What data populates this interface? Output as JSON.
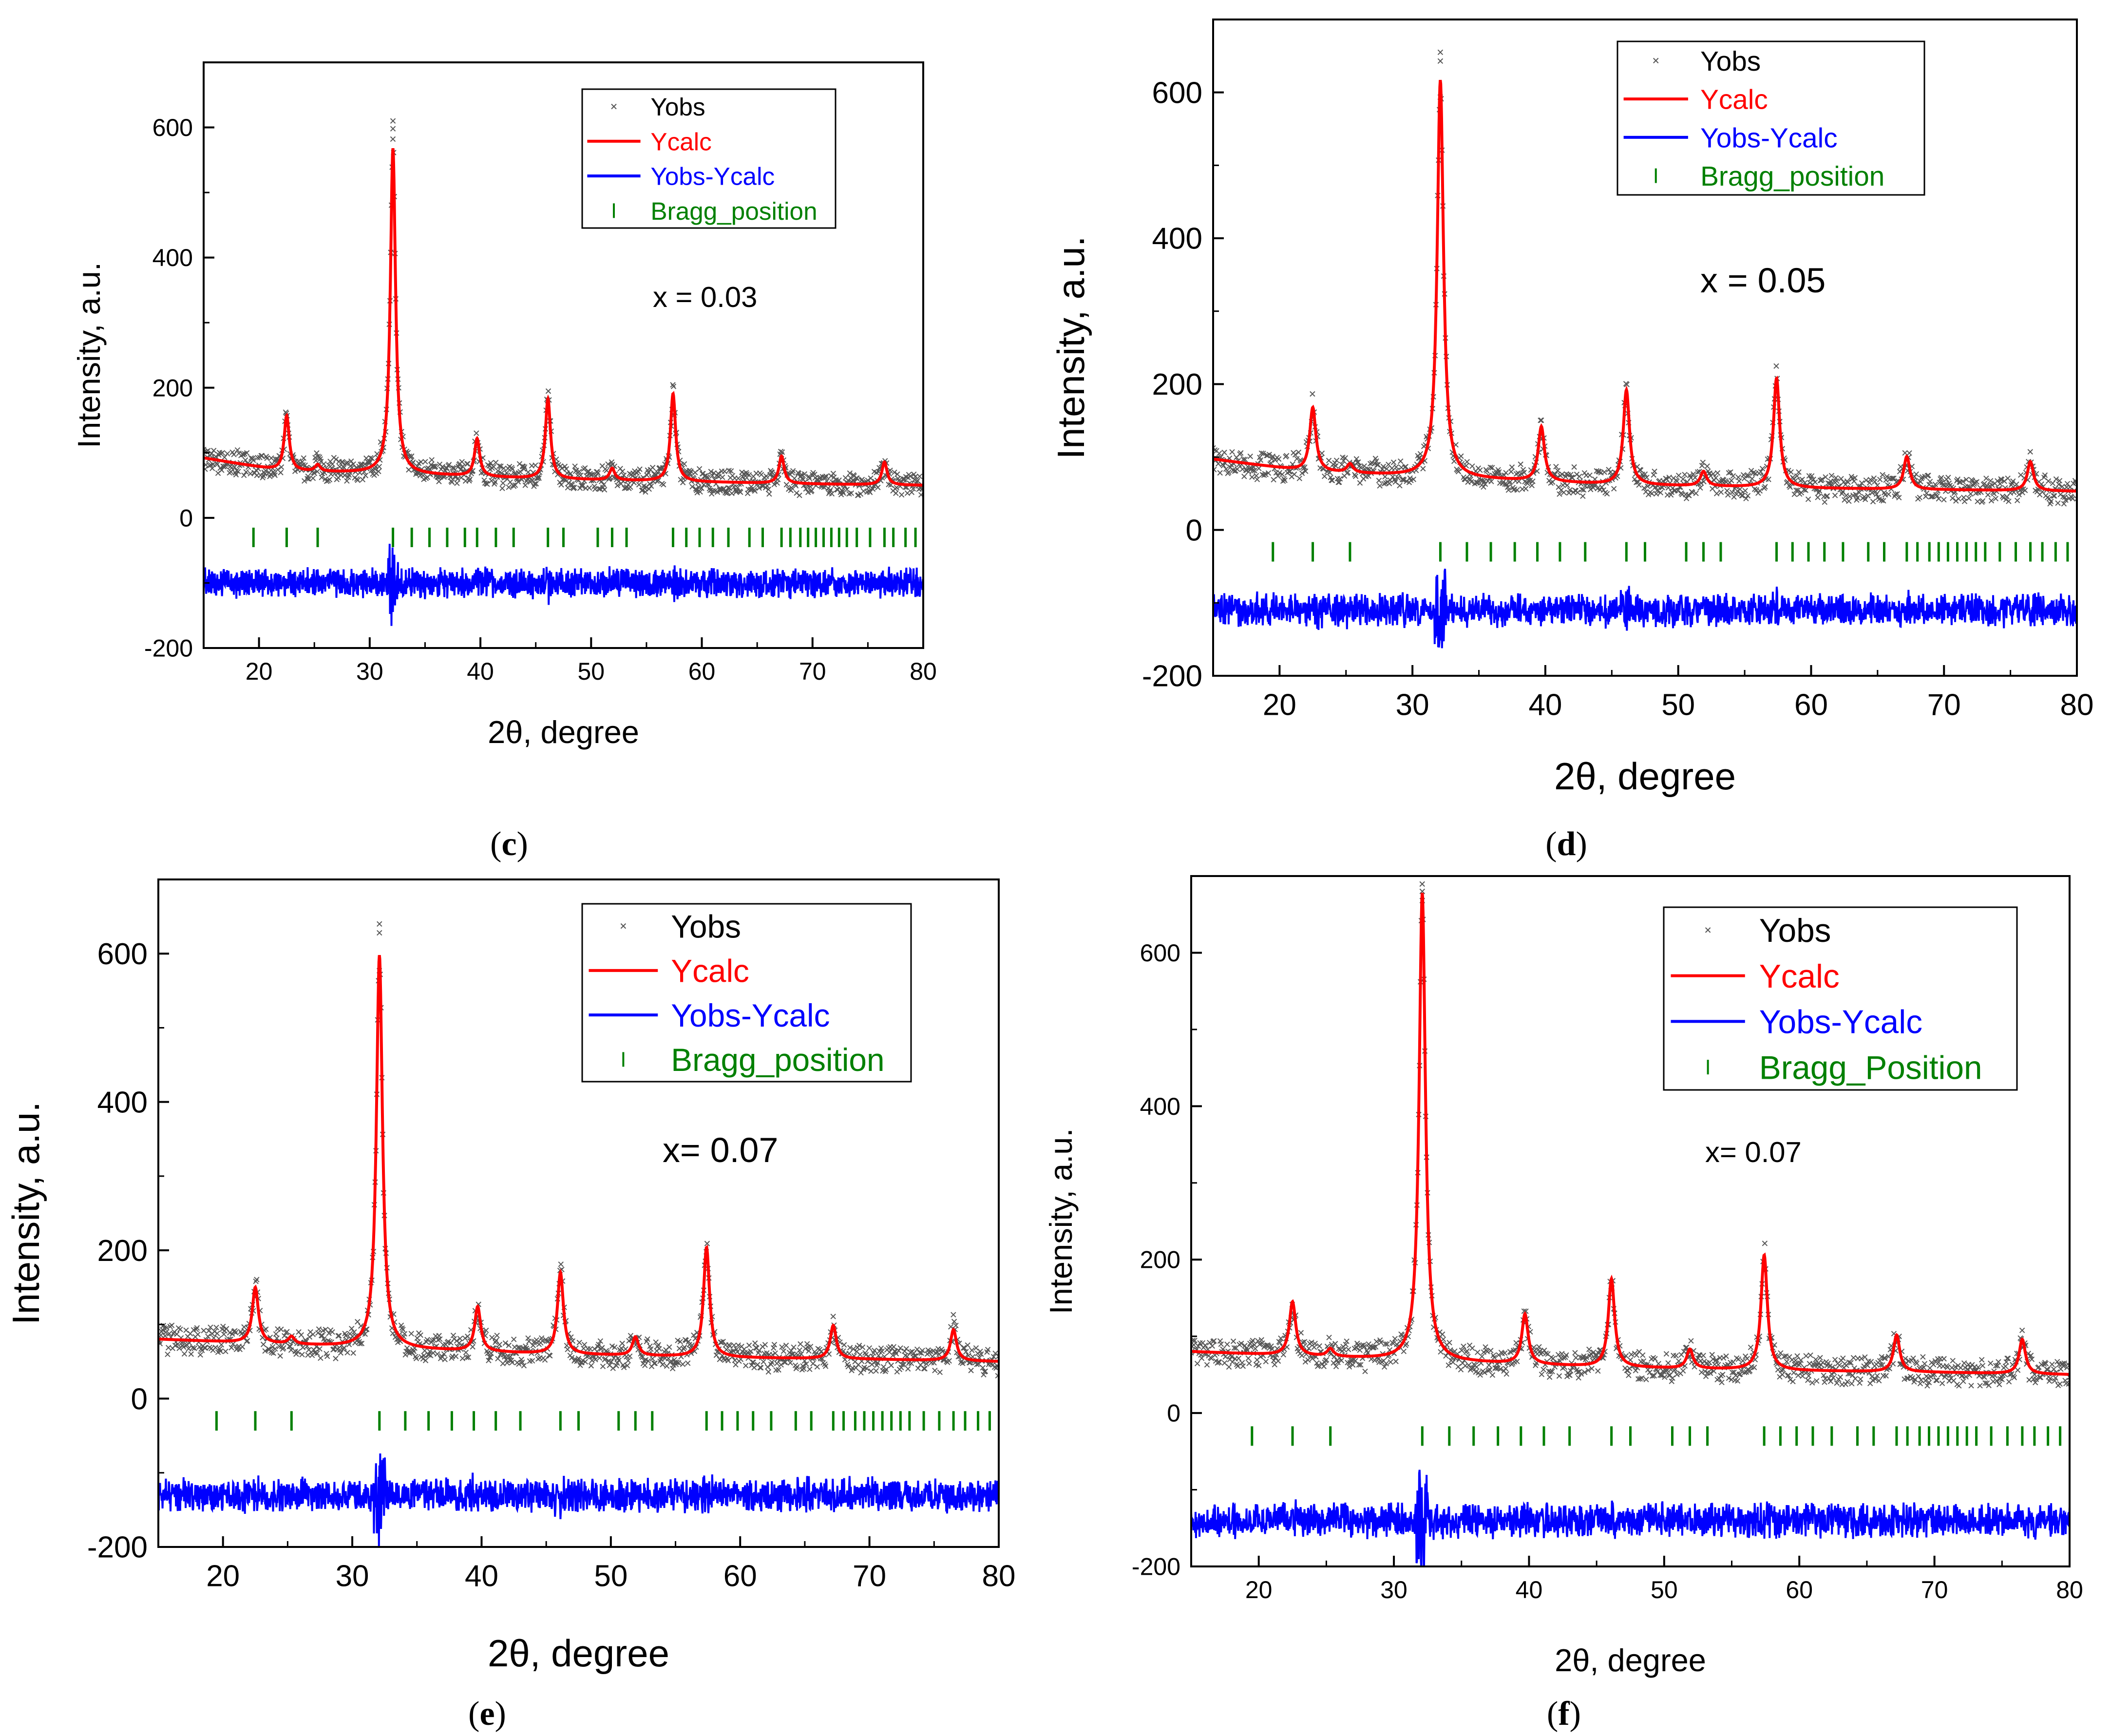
{
  "colors": {
    "yobs": "#555555",
    "ycalc": "#ff0000",
    "diff": "#0000ff",
    "bragg": "#008000",
    "axis": "#000000"
  },
  "chart_data": [
    {
      "panel": "(c)",
      "panel_letter": "c",
      "type": "scatter",
      "xlabel": "2θ, degree",
      "ylabel": "Intensity, a.u.",
      "xlim": [
        15,
        80
      ],
      "ylim": [
        -200,
        700
      ],
      "xticks": [
        20,
        30,
        40,
        50,
        60,
        70,
        80
      ],
      "xtick_labels": [
        "20",
        "30",
        "40",
        "50",
        "60",
        "70",
        "80"
      ],
      "yticks": [
        -200,
        0,
        200,
        400,
        600
      ],
      "ytick_labels": [
        "-200",
        "0",
        "200",
        "400",
        "600"
      ],
      "annotation": "x = 0.03",
      "legend": [
        "Yobs",
        "Ycalc",
        "Yobs-Ycalc",
        "Bragg_position"
      ],
      "background": [
        [
          15,
          92
        ],
        [
          22,
          72
        ],
        [
          32,
          68
        ],
        [
          45,
          60
        ],
        [
          60,
          55
        ],
        [
          70,
          52
        ],
        [
          80,
          50
        ]
      ],
      "peaks": [
        [
          22.5,
          85
        ],
        [
          25.3,
          10
        ],
        [
          32.1,
          500
        ],
        [
          39.7,
          58
        ],
        [
          46.1,
          123
        ],
        [
          51.9,
          18
        ],
        [
          57.4,
          135
        ],
        [
          67.2,
          42
        ],
        [
          76.5,
          35
        ]
      ],
      "yobs_max_top": 610,
      "diff_offset": -100,
      "bragg_y": -30,
      "bragg_positions": [
        19.5,
        22.5,
        25.3,
        32.1,
        33.8,
        35.4,
        37.0,
        38.6,
        39.7,
        41.4,
        43.0,
        46.1,
        47.5,
        50.6,
        51.9,
        53.2,
        57.4,
        58.6,
        59.8,
        61.0,
        62.4,
        64.3,
        65.5,
        67.2,
        68.0,
        68.9,
        69.6,
        70.3,
        71.0,
        71.7,
        72.4,
        73.1,
        74.0,
        75.2,
        76.5,
        77.3,
        78.4,
        79.3
      ]
    },
    {
      "panel": "(d)",
      "panel_letter": "d",
      "type": "scatter",
      "xlabel": "2θ, degree",
      "ylabel": "Intensity, a.u.",
      "xlim": [
        15,
        80
      ],
      "ylim": [
        -200,
        700
      ],
      "xticks": [
        20,
        30,
        40,
        50,
        60,
        70,
        80
      ],
      "xtick_labels": [
        "20",
        "30",
        "40",
        "50",
        "60",
        "70",
        "80"
      ],
      "yticks": [
        -200,
        0,
        200,
        400,
        600
      ],
      "ytick_labels": [
        "-200",
        "0",
        "200",
        "400",
        "600"
      ],
      "annotation": "x = 0.05",
      "legend": [
        "Yobs",
        "Ycalc",
        "Yobs-Ycalc",
        "Bragg_position"
      ],
      "background": [
        [
          15,
          97
        ],
        [
          22,
          80
        ],
        [
          32,
          72
        ],
        [
          45,
          62
        ],
        [
          60,
          57
        ],
        [
          70,
          55
        ],
        [
          80,
          53
        ]
      ],
      "peaks": [
        [
          22.5,
          88
        ],
        [
          25.3,
          12
        ],
        [
          32.1,
          545
        ],
        [
          39.7,
          75
        ],
        [
          46.1,
          130
        ],
        [
          51.9,
          20
        ],
        [
          57.4,
          150
        ],
        [
          67.2,
          45
        ],
        [
          76.5,
          40
        ]
      ],
      "yobs_max_top": 655,
      "diff_offset": -110,
      "bragg_y": -30,
      "bragg_positions": [
        19.5,
        22.5,
        25.3,
        32.1,
        34.1,
        35.9,
        37.7,
        39.4,
        41.1,
        43.0,
        46.1,
        47.5,
        50.6,
        51.9,
        53.2,
        57.4,
        58.6,
        59.8,
        61.0,
        62.4,
        64.3,
        65.5,
        67.2,
        68.0,
        68.9,
        69.6,
        70.3,
        71.0,
        71.7,
        72.4,
        73.1,
        74.2,
        75.4,
        76.5,
        77.4,
        78.4,
        79.3
      ]
    },
    {
      "panel": "(e)",
      "panel_letter": "e",
      "type": "scatter",
      "xlabel": "2θ, degree",
      "ylabel": "Intensity, a.u.",
      "xlim": [
        15,
        80
      ],
      "ylim": [
        -200,
        700
      ],
      "xticks": [
        20,
        30,
        40,
        50,
        60,
        70,
        80
      ],
      "xtick_labels": [
        "20",
        "30",
        "40",
        "50",
        "60",
        "70",
        "80"
      ],
      "yticks": [
        -200,
        0,
        200,
        400,
        600
      ],
      "ytick_labels": [
        "-200",
        "0",
        "200",
        "400",
        "600"
      ],
      "annotation": "x= 0.07",
      "legend": [
        "Yobs",
        "Ycalc",
        "Yobs-Ycalc",
        "Bragg_position"
      ],
      "background": [
        [
          15,
          80
        ],
        [
          22,
          75
        ],
        [
          32,
          68
        ],
        [
          45,
          60
        ],
        [
          60,
          55
        ],
        [
          70,
          53
        ],
        [
          80,
          50
        ]
      ],
      "peaks": [
        [
          22.5,
          75
        ],
        [
          25.3,
          10
        ],
        [
          32.1,
          530
        ],
        [
          39.7,
          60
        ],
        [
          46.1,
          110
        ],
        [
          51.9,
          25
        ],
        [
          57.4,
          148
        ],
        [
          67.2,
          45
        ],
        [
          76.5,
          42
        ]
      ],
      "yobs_max_top": 640,
      "diff_offset": -130,
      "bragg_y": -30,
      "bragg_positions": [
        19.5,
        22.5,
        25.3,
        32.1,
        34.1,
        35.9,
        37.7,
        39.4,
        41.1,
        43.0,
        46.1,
        47.5,
        50.6,
        51.9,
        53.2,
        57.4,
        58.6,
        59.8,
        61.0,
        62.4,
        64.3,
        65.5,
        67.2,
        68.0,
        68.9,
        69.6,
        70.3,
        71.0,
        71.7,
        72.4,
        73.1,
        74.2,
        75.4,
        76.5,
        77.4,
        78.4,
        79.3
      ]
    },
    {
      "panel": "(f)",
      "panel_letter": "f",
      "type": "scatter",
      "xlabel": "2θ, degree",
      "ylabel": "Intensity, a.u.",
      "xlim": [
        15,
        80
      ],
      "ylim": [
        -200,
        700
      ],
      "xticks": [
        20,
        30,
        40,
        50,
        60,
        70,
        80
      ],
      "xtick_labels": [
        "20",
        "30",
        "40",
        "50",
        "60",
        "70",
        "80"
      ],
      "yticks": [
        -200,
        0,
        200,
        400,
        600
      ],
      "ytick_labels": [
        "-200",
        "0",
        "200",
        "400",
        "600"
      ],
      "annotation": "x= 0.07",
      "legend": [
        "Yobs",
        "Ycalc",
        "Yobs-Ycalc",
        "Bragg_Position"
      ],
      "background": [
        [
          15,
          80
        ],
        [
          22,
          75
        ],
        [
          32,
          68
        ],
        [
          45,
          60
        ],
        [
          60,
          55
        ],
        [
          70,
          53
        ],
        [
          80,
          50
        ]
      ],
      "peaks": [
        [
          22.5,
          70
        ],
        [
          25.3,
          10
        ],
        [
          32.1,
          610
        ],
        [
          39.7,
          65
        ],
        [
          46.1,
          115
        ],
        [
          51.9,
          25
        ],
        [
          57.4,
          150
        ],
        [
          67.2,
          48
        ],
        [
          76.5,
          45
        ]
      ],
      "yobs_max_top": 680,
      "diff_offset": -140,
      "bragg_y": -30,
      "bragg_positions": [
        19.5,
        22.5,
        25.3,
        32.1,
        34.1,
        35.9,
        37.7,
        39.4,
        41.1,
        43.0,
        46.1,
        47.5,
        50.6,
        51.9,
        53.2,
        57.4,
        58.6,
        59.8,
        61.0,
        62.4,
        64.3,
        65.5,
        67.2,
        68.0,
        68.9,
        69.6,
        70.3,
        71.0,
        71.7,
        72.4,
        73.1,
        74.2,
        75.4,
        76.5,
        77.4,
        78.4,
        79.3
      ]
    }
  ]
}
